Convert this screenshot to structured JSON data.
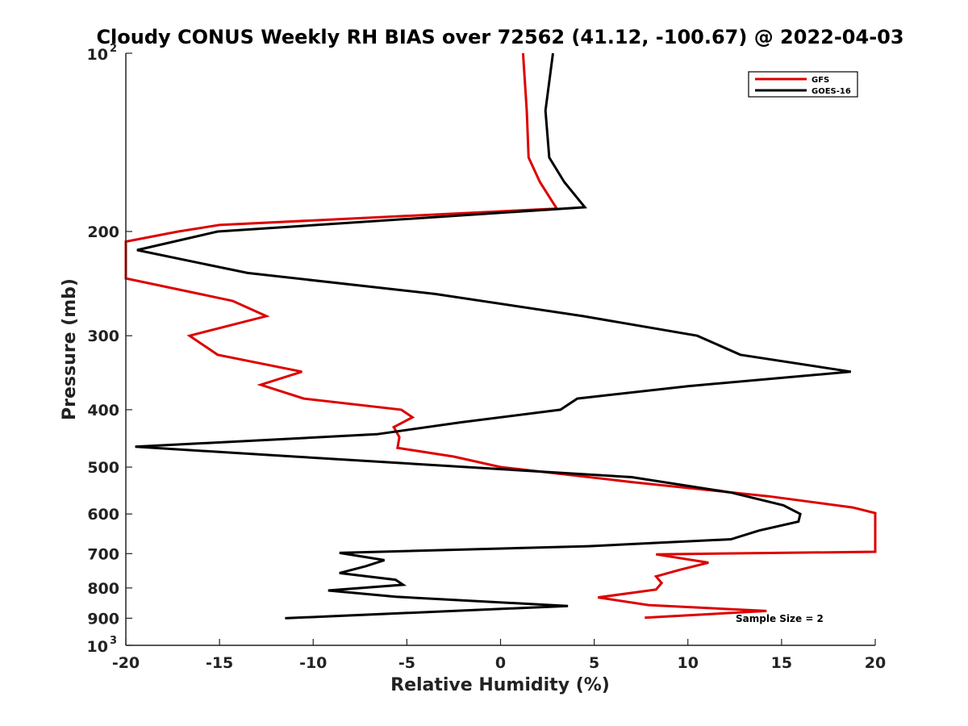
{
  "chart_data": {
    "type": "line",
    "title": "Cloudy CONUS Weekly RH BIAS over 72562 (41.12, -100.67) @ 2022-04-03",
    "xlabel": "Relative Humidity (%)",
    "ylabel": "Pressure (mb)",
    "xlim": [
      -20,
      20
    ],
    "ylim": [
      100,
      1000
    ],
    "y_scale": "log",
    "y_reversed": true,
    "x_ticks": [
      "-20",
      "-15",
      "-10",
      "-5",
      "0",
      "5",
      "10",
      "15",
      "20"
    ],
    "y_ticks": [
      {
        "value": 100,
        "base": "10",
        "exp": "2",
        "label": ""
      },
      {
        "value": 200,
        "label": "200"
      },
      {
        "value": 300,
        "label": "300"
      },
      {
        "value": 400,
        "label": "400"
      },
      {
        "value": 500,
        "label": "500"
      },
      {
        "value": 600,
        "label": "600"
      },
      {
        "value": 700,
        "label": "700"
      },
      {
        "value": 800,
        "label": "800"
      },
      {
        "value": 900,
        "label": "900"
      },
      {
        "value": 1000,
        "base": "10",
        "exp": "3",
        "label": ""
      }
    ],
    "legend_position": "top-right",
    "annotation": "Sample Size = 2",
    "series": [
      {
        "name": "GFS",
        "color": "#dd0000",
        "points": [
          [
            1.2,
            100
          ],
          [
            1.4,
            125
          ],
          [
            1.5,
            150
          ],
          [
            2.1,
            165
          ],
          [
            3.0,
            183
          ],
          [
            -15,
            195
          ],
          [
            -17.2,
            200
          ],
          [
            -20,
            208
          ],
          [
            -20,
            240
          ],
          [
            -14.3,
            262
          ],
          [
            -12.5,
            278
          ],
          [
            -16.6,
            300
          ],
          [
            -15.1,
            323
          ],
          [
            -10.6,
            345
          ],
          [
            -12.8,
            363
          ],
          [
            -10.5,
            383
          ],
          [
            -5.3,
            400
          ],
          [
            -4.7,
            412
          ],
          [
            -5.7,
            428
          ],
          [
            -5.4,
            445
          ],
          [
            -5.5,
            464
          ],
          [
            -2.5,
            480
          ],
          [
            0,
            500
          ],
          [
            7,
            530
          ],
          [
            14.3,
            560
          ],
          [
            18.8,
            585
          ],
          [
            20,
            598
          ],
          [
            20,
            695
          ],
          [
            8.3,
            702
          ],
          [
            11.1,
            725
          ],
          [
            9.6,
            745
          ],
          [
            8.3,
            765
          ],
          [
            8.6,
            785
          ],
          [
            8.3,
            805
          ],
          [
            5.2,
            830
          ],
          [
            7.9,
            855
          ],
          [
            14.2,
            875
          ],
          [
            7.7,
            898
          ]
        ]
      },
      {
        "name": "GOES-16",
        "color": "#000000",
        "points": [
          [
            2.8,
            100
          ],
          [
            2.4,
            125
          ],
          [
            2.6,
            150
          ],
          [
            3.4,
            165
          ],
          [
            4.5,
            182
          ],
          [
            -15.1,
            200
          ],
          [
            -19.4,
            215
          ],
          [
            -13.5,
            235
          ],
          [
            -3.5,
            255
          ],
          [
            4.4,
            278
          ],
          [
            10.5,
            300
          ],
          [
            12.8,
            323
          ],
          [
            18.7,
            345
          ],
          [
            10,
            365
          ],
          [
            4.1,
            383
          ],
          [
            3.2,
            400
          ],
          [
            -2.1,
            420
          ],
          [
            -6.6,
            440
          ],
          [
            -19.5,
            462
          ],
          [
            -11,
            480
          ],
          [
            7,
            520
          ],
          [
            12.3,
            552
          ],
          [
            15.1,
            580
          ],
          [
            16,
            600
          ],
          [
            15.9,
            618
          ],
          [
            13.8,
            640
          ],
          [
            12.3,
            662
          ],
          [
            4.7,
            680
          ],
          [
            -8.6,
            698
          ],
          [
            -6.2,
            718
          ],
          [
            -7.2,
            735
          ],
          [
            -8.6,
            755
          ],
          [
            -5.6,
            775
          ],
          [
            -5.2,
            790
          ],
          [
            -9.2,
            808
          ],
          [
            -5.6,
            828
          ],
          [
            3.6,
            858
          ],
          [
            -11.5,
            900
          ]
        ]
      }
    ]
  }
}
